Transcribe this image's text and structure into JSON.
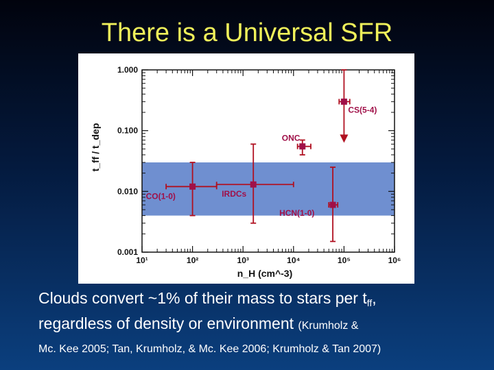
{
  "slide": {
    "title": "There is a Universal SFR",
    "caption": {
      "line1_main": "Clouds convert ~1% of their mass to stars per t",
      "line1_sub": "ff",
      "line1_end": ",",
      "line2_main": "regardless of density or environment ",
      "line2_small": "(Krumholz &",
      "line3_small": "Mc. Kee 2005; Tan, Krumholz, & Mc. Kee 2006; Krumholz & Tan 2007)"
    }
  },
  "colors": {
    "title": "#f0f05a",
    "band": "#6f8fd0",
    "marker": "#a01048",
    "error": "#b01020",
    "label": "#a01048"
  },
  "chart_data": {
    "type": "scatter",
    "title": "",
    "xlabel": "n_H (cm^-3)",
    "ylabel": "t_ff / t_dep",
    "x_scale": "log",
    "y_scale": "log",
    "xlim": [
      10,
      1000000
    ],
    "ylim": [
      0.001,
      1.0
    ],
    "x_ticks": [
      10,
      100,
      1000,
      10000,
      100000,
      1000000
    ],
    "x_tick_labels": [
      "10¹",
      "10²",
      "10³",
      "10⁴",
      "10⁵",
      "10⁶"
    ],
    "y_ticks": [
      0.001,
      0.01,
      0.1,
      1.0
    ],
    "y_tick_labels": [
      "0.001",
      "0.010",
      "0.100",
      "1.000"
    ],
    "band": {
      "y_low": 0.004,
      "y_high": 0.03
    },
    "points": [
      {
        "label": "CO(1-0)",
        "x": 100,
        "y": 0.012,
        "x_err_low": 30,
        "x_err_high": 300,
        "y_err_low": 0.004,
        "y_err_high": 0.03,
        "has_marker": true
      },
      {
        "label": "IRDCs",
        "x": 1600,
        "y": 0.013,
        "x_err_low": 300,
        "x_err_high": 10000,
        "y_err_low": 0.003,
        "y_err_high": 0.06,
        "has_marker": true
      },
      {
        "label": "ONC",
        "x": 15000,
        "y": 0.055,
        "x_err_low": 12000,
        "x_err_high": 22000,
        "y_err_low": 0.04,
        "y_err_high": 0.07,
        "has_marker": true
      },
      {
        "label": "HCN(1-0)",
        "x": 60000,
        "y": 0.006,
        "x_err_low": 50000,
        "x_err_high": 75000,
        "y_err_low": 0.0015,
        "y_err_high": 0.025,
        "has_marker": true
      },
      {
        "label": "CS(5-4)",
        "x": 100000,
        "y": 0.3,
        "x_err_low": 80000,
        "x_err_high": 130000,
        "y_err_low": 0.07,
        "y_err_high": 1.0,
        "has_marker": true,
        "upper_limit_arrow": true
      }
    ]
  }
}
